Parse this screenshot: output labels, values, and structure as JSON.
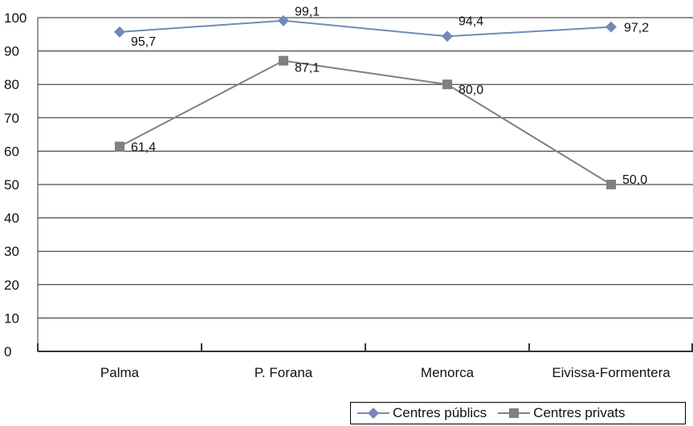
{
  "chart_data": {
    "type": "line",
    "categories": [
      "Palma",
      "P. Forana",
      "Menorca",
      "Eivissa-Formentera"
    ],
    "series": [
      {
        "name": "Centres públics",
        "values": [
          95.7,
          99.1,
          94.4,
          97.2
        ],
        "labels": [
          "95,7",
          "99,1",
          "94,4",
          "97,2"
        ],
        "color": "#7289b8",
        "marker": "diamond"
      },
      {
        "name": "Centres privats",
        "values": [
          61.4,
          87.1,
          80.0,
          50.0
        ],
        "labels": [
          "61,4",
          "87,1",
          "80,0",
          "50,0"
        ],
        "color": "#808080",
        "marker": "square"
      }
    ],
    "ylim": [
      0,
      100
    ],
    "yticks": [
      0,
      10,
      20,
      30,
      40,
      50,
      60,
      70,
      80,
      90,
      100
    ],
    "ytick_labels": [
      "0",
      "10",
      "20",
      "30",
      "40",
      "50",
      "60",
      "70",
      "80",
      "90",
      "100"
    ],
    "grid": true,
    "legend_position": "bottom-right",
    "title": "",
    "xlabel": "",
    "ylabel": ""
  }
}
